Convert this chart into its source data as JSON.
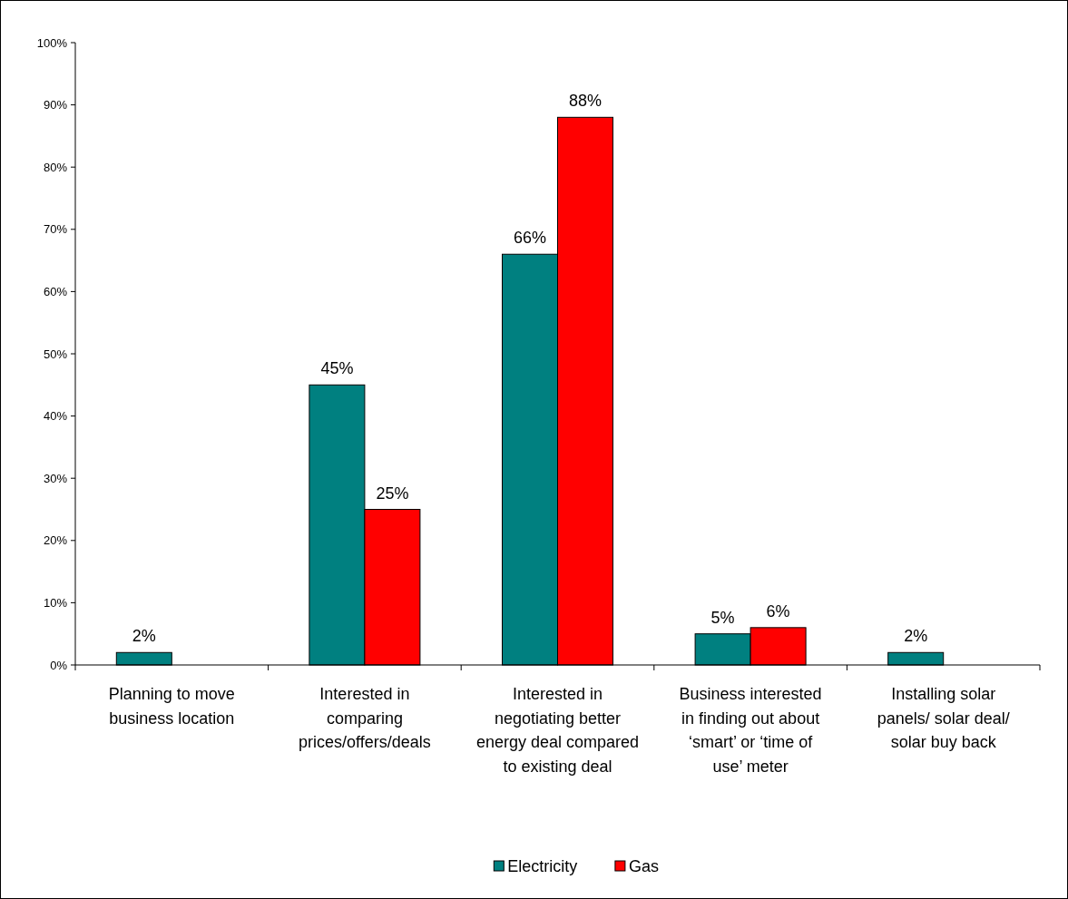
{
  "chart_data": {
    "type": "bar",
    "categories": [
      "Planning to move business location",
      "Interested in comparing prices/offers/deals",
      "Interested in negotiating better energy deal compared to existing deal",
      "Business interested in finding out about ‘smart’ or ‘time of use’ meter",
      "Installing solar panels/ solar deal/ solar buy back"
    ],
    "series": [
      {
        "name": "Electricity",
        "color": "#008080",
        "values": [
          2,
          45,
          66,
          5,
          2
        ],
        "value_labels": [
          "2%",
          "45%",
          "66%",
          "5%",
          "2%"
        ]
      },
      {
        "name": "Gas",
        "color": "#ff0000",
        "values": [
          null,
          25,
          88,
          6,
          null
        ],
        "value_labels": [
          null,
          "25%",
          "88%",
          "6%",
          null
        ]
      }
    ],
    "ylim": [
      0,
      100
    ],
    "yticks": [
      {
        "value": 0,
        "label": "0%"
      },
      {
        "value": 10,
        "label": "10%"
      },
      {
        "value": 20,
        "label": "20%"
      },
      {
        "value": 30,
        "label": "30%"
      },
      {
        "value": 40,
        "label": "40%"
      },
      {
        "value": 50,
        "label": "50%"
      },
      {
        "value": 60,
        "label": "60%"
      },
      {
        "value": 70,
        "label": "70%"
      },
      {
        "value": 80,
        "label": "80%"
      },
      {
        "value": 90,
        "label": "90%"
      },
      {
        "value": 100,
        "label": "100%"
      }
    ],
    "legend": "bottom"
  }
}
